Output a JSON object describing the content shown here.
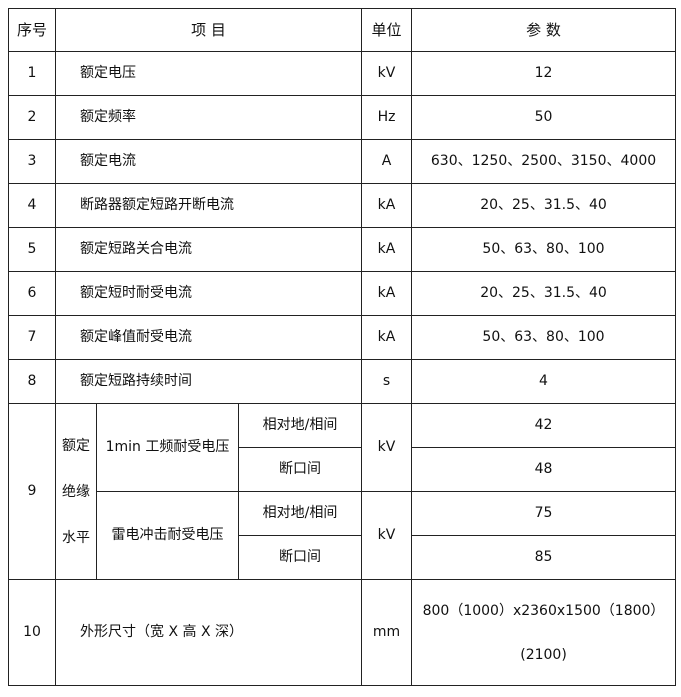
{
  "header": {
    "no": "序号",
    "item": "项 目",
    "unit": "单位",
    "param": "参 数"
  },
  "rows": [
    {
      "no": "1",
      "item": "额定电压",
      "unit": "kV",
      "param": "12"
    },
    {
      "no": "2",
      "item": "额定频率",
      "unit": "Hz",
      "param": "50"
    },
    {
      "no": "3",
      "item": "额定电流",
      "unit": "A",
      "param": "630、1250、2500、3150、4000"
    },
    {
      "no": "4",
      "item": "断路器额定短路开断电流",
      "unit": "kA",
      "param": "20、25、31.5、40"
    },
    {
      "no": "5",
      "item": "额定短路关合电流",
      "unit": "kA",
      "param": "50、63、80、100"
    },
    {
      "no": "6",
      "item": "额定短时耐受电流",
      "unit": "kA",
      "param": "20、25、31.5、40"
    },
    {
      "no": "7",
      "item": "额定峰值耐受电流",
      "unit": "kA",
      "param": "50、63、80、100"
    },
    {
      "no": "8",
      "item": "额定短路持续时间",
      "unit": "s",
      "param": "4"
    }
  ],
  "row9": {
    "no": "9",
    "group": [
      "额定",
      "绝缘",
      "水平"
    ],
    "sub1": {
      "name": "1min 工频耐受电压",
      "unit": "kV",
      "a_label": "相对地/相间",
      "a_value": "42",
      "b_label": "断口间",
      "b_value": "48"
    },
    "sub2": {
      "name": "雷电冲击耐受电压",
      "unit": "kV",
      "a_label": "相对地/相间",
      "a_value": "75",
      "b_label": "断口间",
      "b_value": "85"
    }
  },
  "row10": {
    "no": "10",
    "item": "外形尺寸（宽 X 高 X 深）",
    "unit": "mm",
    "param_line1": "800（1000）x2360x1500（1800）",
    "param_line2": "(2100)"
  }
}
